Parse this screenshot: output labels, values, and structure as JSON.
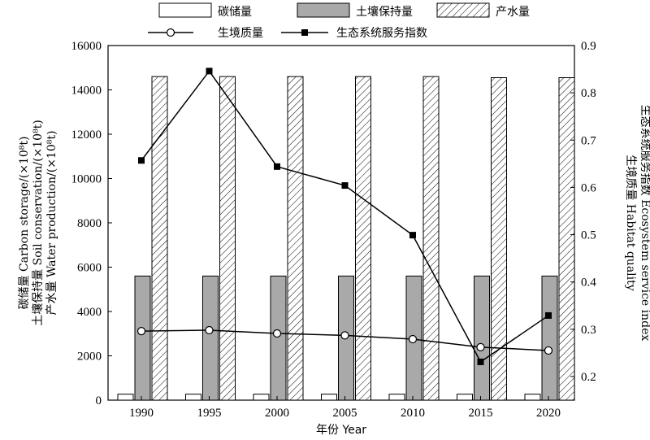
{
  "chart_data": {
    "type": "bar",
    "categories": [
      "1990",
      "1995",
      "2000",
      "2005",
      "2010",
      "2015",
      "2020"
    ],
    "xlabel": "年份 Year",
    "ylabel_left": [
      "碳储量 Carbon storage/(×10⁸t)",
      "土壤保持量 Soil conservation/(×10⁸t)",
      "产水量 Water production/(×10⁸t)"
    ],
    "ylabel_right": [
      "生境质量 Habitat quality",
      "生态系统服务指数 Ecosystem service index"
    ],
    "ylim_left": [
      0,
      16000
    ],
    "ylim_right": [
      0.15,
      0.9
    ],
    "yticks_left": [
      "0",
      "2000",
      "4000",
      "6000",
      "8000",
      "10000",
      "12000",
      "14000",
      "16000"
    ],
    "yticks_right": [
      "0.2",
      "0.3",
      "0.4",
      "0.5",
      "0.6",
      "0.7",
      "0.8",
      "0.9"
    ],
    "bar_series": [
      {
        "name": "碳储量",
        "pattern": "white",
        "values": [
          270,
          270,
          270,
          270,
          270,
          270,
          270
        ]
      },
      {
        "name": "土壤保持量",
        "pattern": "gray",
        "values": [
          5600,
          5600,
          5600,
          5600,
          5600,
          5600,
          5600
        ]
      },
      {
        "name": "产水量",
        "pattern": "hatch",
        "values": [
          14600,
          14600,
          14600,
          14600,
          14600,
          14550,
          14550
        ]
      }
    ],
    "line_series": [
      {
        "name": "生境质量",
        "marker": "open-circle",
        "values": [
          0.296,
          0.298,
          0.291,
          0.287,
          0.279,
          0.262,
          0.255
        ]
      },
      {
        "name": "生态系统服务指数",
        "marker": "filled-square",
        "values": [
          0.657,
          0.846,
          0.644,
          0.604,
          0.499,
          0.231,
          0.329
        ]
      }
    ],
    "legend_position": "top",
    "grid": false,
    "colors": {
      "gray_bar": "#a9a9a9",
      "line": "#000000"
    }
  }
}
